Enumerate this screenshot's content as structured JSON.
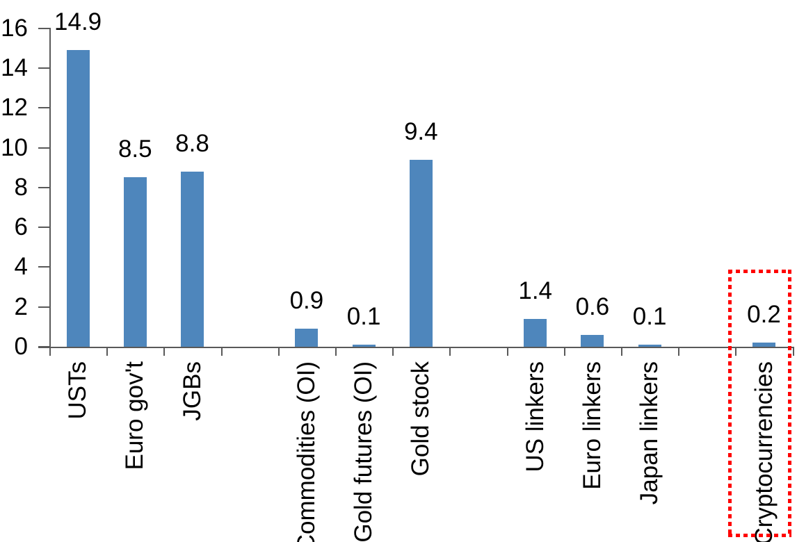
{
  "chart_data": {
    "type": "bar",
    "title": "",
    "xlabel": "",
    "ylabel": "",
    "ylim": [
      0,
      16
    ],
    "yticks": [
      0,
      2,
      4,
      6,
      8,
      10,
      12,
      14,
      16
    ],
    "grid": false,
    "legend": false,
    "categories": [
      "USTs",
      "Euro gov't",
      "JGBs",
      "Commodities (OI)",
      "Gold futures (OI)",
      "Gold stock",
      "US linkers",
      "Euro linkers",
      "Japan linkers",
      "Cryptocurrencies"
    ],
    "values": [
      14.9,
      8.5,
      8.8,
      0.9,
      0.1,
      9.4,
      1.4,
      0.6,
      0.1,
      0.2
    ],
    "value_labels": [
      "14.9",
      "8.5",
      "8.8",
      "0.9",
      "0.1",
      "9.4",
      "1.4",
      "0.6",
      "0.1",
      "0.2"
    ],
    "groups": [
      {
        "items": [
          {
            "label": "USTs",
            "value": 14.9
          },
          {
            "label": "Euro gov't",
            "value": 8.5
          },
          {
            "label": "JGBs",
            "value": 8.8
          }
        ],
        "highlighted": false
      },
      {
        "items": [
          {
            "label": "Commodities (OI)",
            "value": 0.9
          },
          {
            "label": "Gold futures (OI)",
            "value": 0.1
          },
          {
            "label": "Gold stock",
            "value": 9.4
          }
        ],
        "highlighted": false
      },
      {
        "items": [
          {
            "label": "US linkers",
            "value": 1.4
          },
          {
            "label": "Euro linkers",
            "value": 0.6
          },
          {
            "label": "Japan linkers",
            "value": 0.1
          }
        ],
        "highlighted": false
      },
      {
        "items": [
          {
            "label": "Cryptocurrencies",
            "value": 0.2
          }
        ],
        "highlighted": true
      }
    ],
    "colors": {
      "bar": "#4e86bc",
      "axis": "#595959",
      "text": "#000000",
      "highlight_box": "#ff0000",
      "background": "#ffffff"
    }
  }
}
